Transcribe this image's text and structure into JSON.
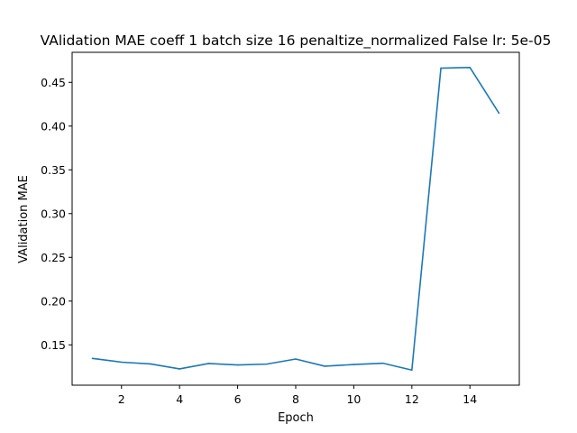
{
  "chart_data": {
    "type": "line",
    "title": "VAlidation MAE coeff 1 batch size 16 penaltize_normalized False lr: 5e-05",
    "xlabel": "Epoch",
    "ylabel": "VAlidation MAE",
    "x": [
      1,
      2,
      3,
      4,
      5,
      6,
      7,
      8,
      9,
      10,
      11,
      12,
      13,
      14,
      15
    ],
    "series": [
      {
        "values": [
          0.1345,
          0.1302,
          0.1282,
          0.1225,
          0.1287,
          0.127,
          0.128,
          0.1338,
          0.1256,
          0.1275,
          0.129,
          0.1212,
          0.4662,
          0.467,
          0.4148
        ],
        "color": "#1f77b4"
      }
    ],
    "xlim": [
      0.3,
      15.7
    ],
    "ylim": [
      0.1039,
      0.4843
    ],
    "xticks": [
      2,
      4,
      6,
      8,
      10,
      12,
      14
    ],
    "yticks": [
      0.15,
      0.2,
      0.25,
      0.3,
      0.35,
      0.4,
      0.45
    ],
    "ytick_labels": [
      "0.15",
      "0.20",
      "0.25",
      "0.30",
      "0.35",
      "0.40",
      "0.45"
    ],
    "grid": false,
    "legend": "none"
  }
}
